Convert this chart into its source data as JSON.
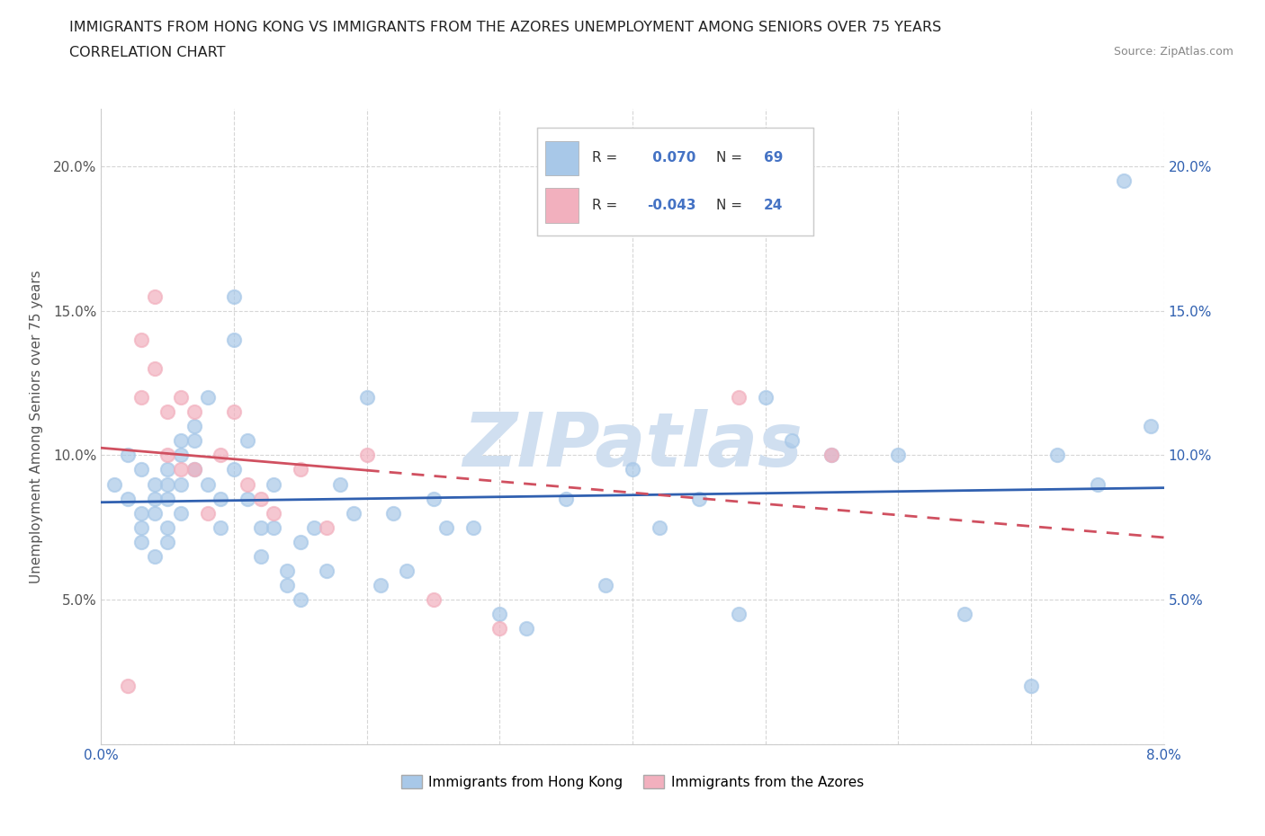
{
  "title_line1": "IMMIGRANTS FROM HONG KONG VS IMMIGRANTS FROM THE AZORES UNEMPLOYMENT AMONG SENIORS OVER 75 YEARS",
  "title_line2": "CORRELATION CHART",
  "source_text": "Source: ZipAtlas.com",
  "ylabel": "Unemployment Among Seniors over 75 years",
  "xlim": [
    0.0,
    0.08
  ],
  "ylim": [
    0.0,
    0.22
  ],
  "x_ticks": [
    0.0,
    0.01,
    0.02,
    0.03,
    0.04,
    0.05,
    0.06,
    0.07,
    0.08
  ],
  "x_tick_labels": [
    "0.0%",
    "",
    "",
    "",
    "",
    "",
    "",
    "",
    "8.0%"
  ],
  "y_ticks": [
    0.0,
    0.05,
    0.1,
    0.15,
    0.2
  ],
  "y_tick_labels": [
    "",
    "5.0%",
    "10.0%",
    "15.0%",
    "20.0%"
  ],
  "hk_color": "#a8c8e8",
  "az_color": "#f2b0be",
  "hk_line_color": "#3060b0",
  "az_line_color": "#d05060",
  "stat_color": "#4472c4",
  "R_hk": 0.07,
  "N_hk": 69,
  "R_az": -0.043,
  "N_az": 24,
  "legend_label_hk": "Immigrants from Hong Kong",
  "legend_label_az": "Immigrants from the Azores",
  "watermark": "ZIPatlas",
  "watermark_color": "#d0dff0",
  "grid_color": "#cccccc",
  "background_color": "#ffffff",
  "hk_x": [
    0.001,
    0.002,
    0.002,
    0.003,
    0.003,
    0.003,
    0.003,
    0.004,
    0.004,
    0.004,
    0.004,
    0.005,
    0.005,
    0.005,
    0.005,
    0.005,
    0.006,
    0.006,
    0.006,
    0.006,
    0.007,
    0.007,
    0.007,
    0.008,
    0.008,
    0.009,
    0.009,
    0.01,
    0.01,
    0.01,
    0.011,
    0.011,
    0.012,
    0.012,
    0.013,
    0.013,
    0.014,
    0.014,
    0.015,
    0.015,
    0.016,
    0.017,
    0.018,
    0.019,
    0.02,
    0.021,
    0.022,
    0.023,
    0.025,
    0.026,
    0.028,
    0.03,
    0.032,
    0.035,
    0.038,
    0.04,
    0.042,
    0.045,
    0.048,
    0.05,
    0.052,
    0.055,
    0.06,
    0.065,
    0.07,
    0.072,
    0.075,
    0.077,
    0.079
  ],
  "hk_y": [
    0.09,
    0.085,
    0.1,
    0.095,
    0.08,
    0.075,
    0.07,
    0.09,
    0.085,
    0.08,
    0.065,
    0.095,
    0.09,
    0.085,
    0.075,
    0.07,
    0.105,
    0.1,
    0.09,
    0.08,
    0.11,
    0.105,
    0.095,
    0.12,
    0.09,
    0.085,
    0.075,
    0.155,
    0.14,
    0.095,
    0.105,
    0.085,
    0.075,
    0.065,
    0.09,
    0.075,
    0.06,
    0.055,
    0.07,
    0.05,
    0.075,
    0.06,
    0.09,
    0.08,
    0.12,
    0.055,
    0.08,
    0.06,
    0.085,
    0.075,
    0.075,
    0.045,
    0.04,
    0.085,
    0.055,
    0.095,
    0.075,
    0.085,
    0.045,
    0.12,
    0.105,
    0.1,
    0.1,
    0.045,
    0.02,
    0.1,
    0.09,
    0.195,
    0.11
  ],
  "az_x": [
    0.002,
    0.003,
    0.003,
    0.004,
    0.004,
    0.005,
    0.005,
    0.006,
    0.006,
    0.007,
    0.007,
    0.008,
    0.009,
    0.01,
    0.011,
    0.012,
    0.013,
    0.015,
    0.017,
    0.02,
    0.025,
    0.03,
    0.048,
    0.055
  ],
  "az_y": [
    0.02,
    0.14,
    0.12,
    0.155,
    0.13,
    0.115,
    0.1,
    0.12,
    0.095,
    0.115,
    0.095,
    0.08,
    0.1,
    0.115,
    0.09,
    0.085,
    0.08,
    0.095,
    0.075,
    0.1,
    0.05,
    0.04,
    0.12,
    0.1
  ]
}
